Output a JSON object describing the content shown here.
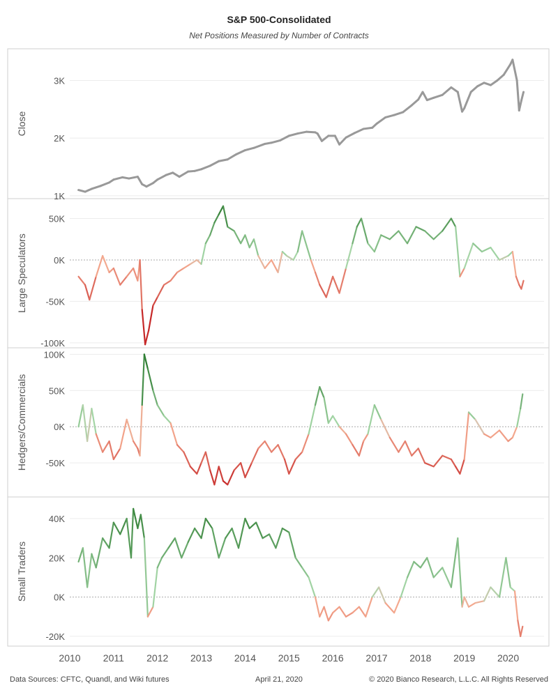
{
  "title": "S&P 500-Consolidated",
  "subtitle": "Net Positions Measured by Number of Contracts",
  "footer": {
    "sources": "Data Sources: CFTC, Quandl, and Wiki futures",
    "date": "April 21, 2020",
    "copyright": "© 2020 Bianco Research, L.L.C. All Rights Reserved"
  },
  "colors": {
    "close_line": "#999999",
    "positive_dark": "#2e7d32",
    "positive_light": "#a5d6a7",
    "neutral": "#d9c3b0",
    "negative_light": "#f4a98f",
    "negative_dark": "#c62828"
  },
  "chart_data": {
    "type": "line",
    "x_axis": {
      "tick_labels": [
        "2010",
        "2011",
        "2012",
        "2013",
        "2014",
        "2015",
        "2016",
        "2017",
        "2018",
        "2019",
        "2020"
      ],
      "xlim": [
        2010.0,
        2020.5
      ]
    },
    "panels": [
      {
        "ylabel": "Close",
        "ticks": [
          1000,
          2000,
          3000
        ],
        "tick_labels": [
          "1K",
          "2K",
          "3K"
        ],
        "ylim": [
          950,
          3550
        ],
        "color_mode": "gray",
        "series": {
          "x": [
            2010.2,
            2010.35,
            2010.5,
            2010.7,
            2010.9,
            2011.0,
            2011.2,
            2011.35,
            2011.55,
            2011.65,
            2011.75,
            2011.9,
            2012.0,
            2012.2,
            2012.35,
            2012.5,
            2012.7,
            2012.85,
            2013.0,
            2013.2,
            2013.4,
            2013.6,
            2013.8,
            2014.0,
            2014.2,
            2014.45,
            2014.6,
            2014.8,
            2015.0,
            2015.2,
            2015.4,
            2015.6,
            2015.65,
            2015.75,
            2015.9,
            2016.05,
            2016.15,
            2016.3,
            2016.5,
            2016.7,
            2016.9,
            2017.0,
            2017.2,
            2017.4,
            2017.6,
            2017.8,
            2017.95,
            2018.05,
            2018.15,
            2018.3,
            2018.5,
            2018.7,
            2018.85,
            2018.95,
            2019.0,
            2019.15,
            2019.3,
            2019.45,
            2019.6,
            2019.75,
            2019.9,
            2020.05,
            2020.1,
            2020.2,
            2020.25,
            2020.3,
            2020.35
          ],
          "y": [
            1100,
            1070,
            1120,
            1170,
            1230,
            1280,
            1320,
            1300,
            1330,
            1200,
            1160,
            1220,
            1280,
            1360,
            1400,
            1330,
            1420,
            1430,
            1460,
            1520,
            1600,
            1630,
            1720,
            1790,
            1830,
            1900,
            1920,
            1960,
            2040,
            2080,
            2110,
            2100,
            2080,
            1950,
            2040,
            2040,
            1890,
            2010,
            2090,
            2160,
            2180,
            2250,
            2360,
            2400,
            2450,
            2570,
            2670,
            2800,
            2660,
            2700,
            2750,
            2880,
            2800,
            2460,
            2520,
            2800,
            2900,
            2960,
            2920,
            3000,
            3100,
            3280,
            3360,
            3000,
            2480,
            2650,
            2800
          ]
        }
      },
      {
        "ylabel": "Large Speculators",
        "ticks": [
          -100000,
          -50000,
          0,
          50000
        ],
        "tick_labels": [
          "-100K",
          "-50K",
          "0K",
          "50K"
        ],
        "ylim": [
          -106000,
          74000
        ],
        "color_mode": "diverging",
        "color_max": 65000,
        "series": {
          "x": [
            2010.2,
            2010.35,
            2010.45,
            2010.6,
            2010.75,
            2010.9,
            2011.0,
            2011.15,
            2011.3,
            2011.45,
            2011.55,
            2011.6,
            2011.65,
            2011.72,
            2011.8,
            2011.9,
            2012.0,
            2012.15,
            2012.3,
            2012.45,
            2012.6,
            2012.75,
            2012.9,
            2013.0,
            2013.1,
            2013.2,
            2013.3,
            2013.4,
            2013.5,
            2013.6,
            2013.75,
            2013.9,
            2014.0,
            2014.1,
            2014.2,
            2014.3,
            2014.45,
            2014.6,
            2014.75,
            2014.85,
            2014.95,
            2015.1,
            2015.2,
            2015.3,
            2015.5,
            2015.6,
            2015.7,
            2015.85,
            2016.0,
            2016.15,
            2016.3,
            2016.45,
            2016.55,
            2016.65,
            2016.8,
            2016.95,
            2017.1,
            2017.3,
            2017.5,
            2017.7,
            2017.9,
            2018.1,
            2018.3,
            2018.5,
            2018.7,
            2018.8,
            2018.9,
            2019.0,
            2019.2,
            2019.4,
            2019.6,
            2019.8,
            2020.0,
            2020.1,
            2020.18,
            2020.25,
            2020.3,
            2020.35
          ],
          "y": [
            -20000,
            -30000,
            -48000,
            -20000,
            5000,
            -15000,
            -10000,
            -30000,
            -20000,
            -10000,
            -25000,
            0,
            -60000,
            -102000,
            -85000,
            -55000,
            -45000,
            -30000,
            -25000,
            -15000,
            -10000,
            -5000,
            0,
            -5000,
            20000,
            30000,
            45000,
            55000,
            65000,
            40000,
            35000,
            20000,
            30000,
            15000,
            25000,
            5000,
            -10000,
            0,
            -15000,
            10000,
            5000,
            0,
            10000,
            35000,
            0,
            -15000,
            -30000,
            -45000,
            -20000,
            -40000,
            -10000,
            20000,
            40000,
            50000,
            20000,
            10000,
            30000,
            25000,
            35000,
            20000,
            40000,
            35000,
            25000,
            35000,
            50000,
            40000,
            -20000,
            -10000,
            20000,
            10000,
            15000,
            0,
            5000,
            10000,
            -20000,
            -30000,
            -35000,
            -25000
          ]
        }
      },
      {
        "ylabel": "Hedgers/Commercials",
        "ticks": [
          -50000,
          0,
          50000,
          100000
        ],
        "tick_labels": [
          "-50K",
          "0K",
          "50K",
          "100K"
        ],
        "ylim": [
          -97000,
          109000
        ],
        "color_mode": "diverging",
        "color_max": 80000,
        "series": {
          "x": [
            2010.2,
            2010.3,
            2010.4,
            2010.5,
            2010.6,
            2010.75,
            2010.9,
            2011.0,
            2011.15,
            2011.3,
            2011.45,
            2011.55,
            2011.6,
            2011.65,
            2011.7,
            2011.78,
            2011.9,
            2012.0,
            2012.15,
            2012.3,
            2012.45,
            2012.6,
            2012.75,
            2012.9,
            2013.0,
            2013.1,
            2013.2,
            2013.3,
            2013.4,
            2013.5,
            2013.6,
            2013.75,
            2013.9,
            2014.0,
            2014.15,
            2014.3,
            2014.45,
            2014.6,
            2014.75,
            2014.9,
            2015.0,
            2015.15,
            2015.3,
            2015.45,
            2015.6,
            2015.7,
            2015.8,
            2015.9,
            2016.0,
            2016.15,
            2016.3,
            2016.45,
            2016.6,
            2016.7,
            2016.8,
            2016.95,
            2017.1,
            2017.3,
            2017.5,
            2017.65,
            2017.8,
            2017.95,
            2018.1,
            2018.3,
            2018.5,
            2018.7,
            2018.8,
            2018.9,
            2019.0,
            2019.1,
            2019.25,
            2019.45,
            2019.6,
            2019.8,
            2020.0,
            2020.1,
            2020.2,
            2020.28,
            2020.33
          ],
          "y": [
            0,
            30000,
            -20000,
            25000,
            -10000,
            -35000,
            -20000,
            -45000,
            -30000,
            10000,
            -20000,
            -30000,
            -40000,
            30000,
            100000,
            80000,
            50000,
            30000,
            15000,
            5000,
            -25000,
            -35000,
            -55000,
            -65000,
            -50000,
            -35000,
            -60000,
            -80000,
            -55000,
            -75000,
            -80000,
            -60000,
            -50000,
            -70000,
            -50000,
            -30000,
            -20000,
            -35000,
            -25000,
            -45000,
            -65000,
            -45000,
            -35000,
            -10000,
            30000,
            55000,
            40000,
            5000,
            15000,
            0,
            -10000,
            -25000,
            -40000,
            -20000,
            -10000,
            30000,
            10000,
            -15000,
            -35000,
            -20000,
            -40000,
            -30000,
            -50000,
            -55000,
            -40000,
            -45000,
            -55000,
            -65000,
            -45000,
            20000,
            10000,
            -10000,
            -15000,
            -5000,
            -20000,
            -15000,
            0,
            25000,
            45000
          ]
        }
      },
      {
        "ylabel": "Small Traders",
        "ticks": [
          -20000,
          0,
          20000,
          40000
        ],
        "tick_labels": [
          "-20K",
          "0K",
          "20K",
          "40K"
        ],
        "ylim": [
          -25000,
          51000
        ],
        "color_mode": "diverging",
        "color_max": 45000,
        "series": {
          "x": [
            2010.2,
            2010.3,
            2010.4,
            2010.5,
            2010.6,
            2010.75,
            2010.9,
            2011.0,
            2011.15,
            2011.3,
            2011.4,
            2011.45,
            2011.55,
            2011.62,
            2011.7,
            2011.78,
            2011.9,
            2012.0,
            2012.1,
            2012.25,
            2012.4,
            2012.55,
            2012.7,
            2012.85,
            2013.0,
            2013.1,
            2013.25,
            2013.4,
            2013.55,
            2013.7,
            2013.85,
            2014.0,
            2014.1,
            2014.25,
            2014.4,
            2014.55,
            2014.7,
            2014.85,
            2015.0,
            2015.15,
            2015.3,
            2015.45,
            2015.6,
            2015.7,
            2015.8,
            2015.9,
            2016.0,
            2016.15,
            2016.3,
            2016.45,
            2016.6,
            2016.75,
            2016.9,
            2017.05,
            2017.2,
            2017.4,
            2017.55,
            2017.7,
            2017.85,
            2018.0,
            2018.15,
            2018.3,
            2018.5,
            2018.7,
            2018.85,
            2018.95,
            2019.0,
            2019.1,
            2019.25,
            2019.45,
            2019.6,
            2019.8,
            2019.95,
            2020.05,
            2020.15,
            2020.22,
            2020.28,
            2020.33
          ],
          "y": [
            18000,
            25000,
            5000,
            22000,
            15000,
            30000,
            25000,
            38000,
            32000,
            40000,
            20000,
            45000,
            35000,
            42000,
            30000,
            -10000,
            -5000,
            15000,
            20000,
            25000,
            30000,
            20000,
            28000,
            35000,
            30000,
            40000,
            35000,
            20000,
            30000,
            35000,
            25000,
            40000,
            35000,
            38000,
            30000,
            32000,
            25000,
            35000,
            33000,
            20000,
            15000,
            10000,
            0,
            -10000,
            -5000,
            -12000,
            -8000,
            -5000,
            -10000,
            -8000,
            -5000,
            -10000,
            0,
            5000,
            -3000,
            -8000,
            0,
            10000,
            18000,
            15000,
            20000,
            10000,
            15000,
            5000,
            30000,
            -5000,
            0,
            -5000,
            -3000,
            -2000,
            5000,
            0,
            20000,
            5000,
            3000,
            -12000,
            -20000,
            -15000
          ]
        }
      }
    ]
  }
}
